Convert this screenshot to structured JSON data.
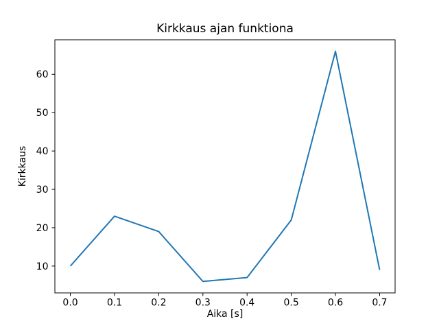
{
  "figure": {
    "background": "#ffffff",
    "axis_color": "#000000"
  },
  "chart_data": {
    "type": "line",
    "title": "Kirkkaus ajan funktiona",
    "xlabel": "Aika [s]",
    "ylabel": "Kirkkaus",
    "x": [
      0.0,
      0.1,
      0.2,
      0.3,
      0.4,
      0.5,
      0.6,
      0.7
    ],
    "values": [
      10,
      23,
      19,
      6,
      7,
      22,
      66,
      9
    ],
    "series": [
      {
        "name": "kirkkaus",
        "values": [
          10,
          23,
          19,
          6,
          7,
          22,
          66,
          9
        ]
      }
    ],
    "xlim": [
      -0.035,
      0.735
    ],
    "ylim": [
      3,
      69
    ],
    "xticks": [
      0.0,
      0.1,
      0.2,
      0.3,
      0.4,
      0.5,
      0.6,
      0.7
    ],
    "xtick_labels": [
      "0.0",
      "0.1",
      "0.2",
      "0.3",
      "0.4",
      "0.5",
      "0.6",
      "0.7"
    ],
    "yticks": [
      10,
      20,
      30,
      40,
      50,
      60
    ],
    "ytick_labels": [
      "10",
      "20",
      "30",
      "40",
      "50",
      "60"
    ],
    "line_color": "#1f77b4",
    "line_width": 2,
    "grid": false,
    "legend": null
  }
}
